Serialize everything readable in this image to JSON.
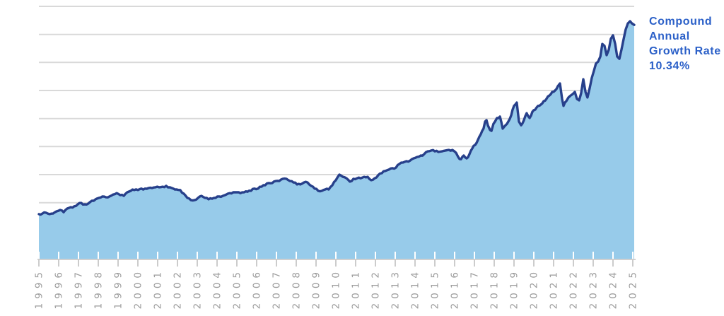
{
  "page": {
    "background": "#ffffff"
  },
  "cagr": {
    "lines": [
      "Compound",
      "Annual",
      "Growth Rate",
      "10.34%"
    ],
    "color": "#2b60c8"
  },
  "chart_data": {
    "type": "area",
    "title": "",
    "xlabel": "",
    "ylabel": "",
    "annotation": "Compound Annual Growth Rate 10.34%",
    "x_axis": {
      "tick_labels": [
        "1995",
        "1996",
        "1997",
        "1998",
        "1999",
        "2000",
        "2001",
        "2002",
        "2003",
        "2004",
        "2005",
        "2006",
        "2007",
        "2008",
        "2009",
        "2010",
        "2011",
        "2012",
        "2013",
        "2014",
        "2015",
        "2016",
        "2017",
        "2018",
        "2019",
        "2020",
        "2021",
        "2022",
        "2023",
        "2024",
        "2025"
      ],
      "label_rotation_deg": -90
    },
    "y_axis": {
      "labels_visible": false,
      "units_note": "y values are in unlabeled-gridline intervals above the baseline (baseline = 0, top gridline = 9)",
      "gridline_units": [
        1,
        2,
        3,
        4,
        5,
        6,
        7,
        8,
        9
      ],
      "ylim": [
        0,
        9
      ]
    },
    "legend": {
      "visible": false
    },
    "series": [
      {
        "name": "growth-index",
        "points": [
          [
            1995.0,
            1.59
          ],
          [
            1995.18,
            1.61
          ],
          [
            1995.36,
            1.64
          ],
          [
            1995.54,
            1.59
          ],
          [
            1995.71,
            1.61
          ],
          [
            1995.89,
            1.69
          ],
          [
            1996.07,
            1.74
          ],
          [
            1996.25,
            1.66
          ],
          [
            1996.43,
            1.79
          ],
          [
            1996.61,
            1.84
          ],
          [
            1996.79,
            1.87
          ],
          [
            1996.96,
            1.94
          ],
          [
            1997.14,
            1.99
          ],
          [
            1997.32,
            1.94
          ],
          [
            1997.5,
            1.97
          ],
          [
            1997.68,
            2.07
          ],
          [
            1997.86,
            2.12
          ],
          [
            1998.04,
            2.17
          ],
          [
            1998.21,
            2.22
          ],
          [
            1998.39,
            2.19
          ],
          [
            1998.57,
            2.22
          ],
          [
            1998.75,
            2.29
          ],
          [
            1998.93,
            2.34
          ],
          [
            1999.11,
            2.27
          ],
          [
            1999.29,
            2.24
          ],
          [
            1999.46,
            2.37
          ],
          [
            1999.64,
            2.42
          ],
          [
            1999.82,
            2.45
          ],
          [
            2000.0,
            2.45
          ],
          [
            2000.18,
            2.5
          ],
          [
            2000.36,
            2.5
          ],
          [
            2000.54,
            2.52
          ],
          [
            2000.71,
            2.52
          ],
          [
            2000.89,
            2.55
          ],
          [
            2001.07,
            2.55
          ],
          [
            2001.25,
            2.57
          ],
          [
            2001.43,
            2.6
          ],
          [
            2001.61,
            2.55
          ],
          [
            2001.79,
            2.5
          ],
          [
            2001.96,
            2.47
          ],
          [
            2002.14,
            2.45
          ],
          [
            2002.32,
            2.32
          ],
          [
            2002.5,
            2.17
          ],
          [
            2002.68,
            2.09
          ],
          [
            2002.86,
            2.09
          ],
          [
            2003.04,
            2.17
          ],
          [
            2003.21,
            2.24
          ],
          [
            2003.39,
            2.17
          ],
          [
            2003.57,
            2.12
          ],
          [
            2003.75,
            2.14
          ],
          [
            2003.93,
            2.17
          ],
          [
            2004.11,
            2.22
          ],
          [
            2004.29,
            2.24
          ],
          [
            2004.46,
            2.29
          ],
          [
            2004.64,
            2.34
          ],
          [
            2004.82,
            2.37
          ],
          [
            2005.0,
            2.37
          ],
          [
            2005.18,
            2.34
          ],
          [
            2005.36,
            2.37
          ],
          [
            2005.54,
            2.39
          ],
          [
            2005.71,
            2.42
          ],
          [
            2005.89,
            2.5
          ],
          [
            2006.07,
            2.5
          ],
          [
            2006.25,
            2.57
          ],
          [
            2006.43,
            2.62
          ],
          [
            2006.61,
            2.7
          ],
          [
            2006.79,
            2.7
          ],
          [
            2006.96,
            2.77
          ],
          [
            2007.14,
            2.77
          ],
          [
            2007.32,
            2.85
          ],
          [
            2007.5,
            2.85
          ],
          [
            2007.68,
            2.77
          ],
          [
            2007.86,
            2.72
          ],
          [
            2008.04,
            2.65
          ],
          [
            2008.21,
            2.65
          ],
          [
            2008.39,
            2.72
          ],
          [
            2008.57,
            2.72
          ],
          [
            2008.75,
            2.6
          ],
          [
            2008.93,
            2.5
          ],
          [
            2009.11,
            2.42
          ],
          [
            2009.29,
            2.42
          ],
          [
            2009.46,
            2.47
          ],
          [
            2009.64,
            2.47
          ],
          [
            2009.82,
            2.62
          ],
          [
            2010.0,
            2.8
          ],
          [
            2010.18,
            3.0
          ],
          [
            2010.36,
            2.92
          ],
          [
            2010.54,
            2.87
          ],
          [
            2010.71,
            2.75
          ],
          [
            2010.89,
            2.85
          ],
          [
            2011.07,
            2.87
          ],
          [
            2011.25,
            2.87
          ],
          [
            2011.43,
            2.92
          ],
          [
            2011.61,
            2.92
          ],
          [
            2011.79,
            2.8
          ],
          [
            2011.96,
            2.87
          ],
          [
            2012.14,
            2.98
          ],
          [
            2012.32,
            3.05
          ],
          [
            2012.5,
            3.13
          ],
          [
            2012.68,
            3.18
          ],
          [
            2012.86,
            3.23
          ],
          [
            2013.04,
            3.25
          ],
          [
            2013.21,
            3.38
          ],
          [
            2013.39,
            3.43
          ],
          [
            2013.57,
            3.48
          ],
          [
            2013.75,
            3.5
          ],
          [
            2013.93,
            3.58
          ],
          [
            2014.11,
            3.63
          ],
          [
            2014.29,
            3.68
          ],
          [
            2014.46,
            3.73
          ],
          [
            2014.64,
            3.83
          ],
          [
            2014.82,
            3.86
          ],
          [
            2015.0,
            3.83
          ],
          [
            2015.18,
            3.81
          ],
          [
            2015.36,
            3.83
          ],
          [
            2015.54,
            3.86
          ],
          [
            2015.71,
            3.88
          ],
          [
            2015.89,
            3.88
          ],
          [
            2016.07,
            3.78
          ],
          [
            2016.18,
            3.63
          ],
          [
            2016.32,
            3.55
          ],
          [
            2016.46,
            3.68
          ],
          [
            2016.61,
            3.58
          ],
          [
            2016.75,
            3.73
          ],
          [
            2016.89,
            3.93
          ],
          [
            2017.04,
            4.06
          ],
          [
            2017.18,
            4.24
          ],
          [
            2017.32,
            4.44
          ],
          [
            2017.46,
            4.64
          ],
          [
            2017.54,
            4.89
          ],
          [
            2017.61,
            4.94
          ],
          [
            2017.68,
            4.76
          ],
          [
            2017.79,
            4.59
          ],
          [
            2017.86,
            4.56
          ],
          [
            2017.96,
            4.81
          ],
          [
            2018.04,
            4.89
          ],
          [
            2018.14,
            5.02
          ],
          [
            2018.29,
            5.07
          ],
          [
            2018.43,
            4.64
          ],
          [
            2018.57,
            4.76
          ],
          [
            2018.71,
            4.89
          ],
          [
            2018.86,
            5.12
          ],
          [
            2019.0,
            5.45
          ],
          [
            2019.14,
            5.57
          ],
          [
            2019.25,
            4.89
          ],
          [
            2019.36,
            4.76
          ],
          [
            2019.5,
            4.94
          ],
          [
            2019.64,
            5.19
          ],
          [
            2019.79,
            5.02
          ],
          [
            2019.93,
            5.24
          ],
          [
            2020.07,
            5.32
          ],
          [
            2020.21,
            5.45
          ],
          [
            2020.36,
            5.5
          ],
          [
            2020.5,
            5.62
          ],
          [
            2020.64,
            5.7
          ],
          [
            2020.79,
            5.82
          ],
          [
            2020.93,
            5.95
          ],
          [
            2021.07,
            6.0
          ],
          [
            2021.21,
            6.15
          ],
          [
            2021.32,
            6.25
          ],
          [
            2021.43,
            5.7
          ],
          [
            2021.5,
            5.45
          ],
          [
            2021.57,
            5.57
          ],
          [
            2021.64,
            5.62
          ],
          [
            2021.75,
            5.75
          ],
          [
            2021.86,
            5.82
          ],
          [
            2021.96,
            5.87
          ],
          [
            2022.07,
            5.95
          ],
          [
            2022.18,
            5.7
          ],
          [
            2022.29,
            5.65
          ],
          [
            2022.39,
            5.9
          ],
          [
            2022.5,
            6.4
          ],
          [
            2022.61,
            5.95
          ],
          [
            2022.71,
            5.75
          ],
          [
            2022.82,
            6.08
          ],
          [
            2022.93,
            6.45
          ],
          [
            2023.04,
            6.71
          ],
          [
            2023.14,
            6.96
          ],
          [
            2023.25,
            7.03
          ],
          [
            2023.36,
            7.21
          ],
          [
            2023.46,
            7.66
          ],
          [
            2023.57,
            7.59
          ],
          [
            2023.68,
            7.26
          ],
          [
            2023.79,
            7.46
          ],
          [
            2023.89,
            7.84
          ],
          [
            2024.0,
            7.97
          ],
          [
            2024.11,
            7.66
          ],
          [
            2024.21,
            7.21
          ],
          [
            2024.32,
            7.13
          ],
          [
            2024.43,
            7.46
          ],
          [
            2024.54,
            7.84
          ],
          [
            2024.64,
            8.17
          ],
          [
            2024.75,
            8.39
          ],
          [
            2024.86,
            8.47
          ],
          [
            2024.96,
            8.39
          ],
          [
            2025.07,
            8.34
          ]
        ]
      }
    ],
    "colors": {
      "line": "#27408b",
      "fill": "#97cbea",
      "gridline": "#d9d9d9",
      "axis_line": "#d0d0d0",
      "tick_below": "#cccccc",
      "tick_inside": "#ffffff",
      "year_label": "#9b9b9b",
      "annotation_text": "#2b60c8"
    }
  }
}
